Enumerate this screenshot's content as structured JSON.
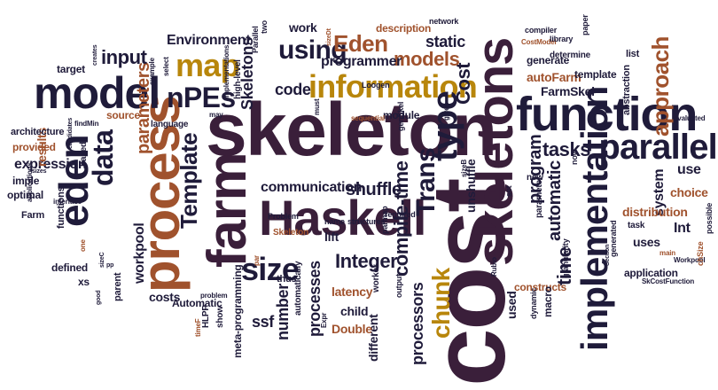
{
  "palette": {
    "background": "#ffffff",
    "word_colors": [
      "#3a1f3a",
      "#a0522d",
      "#b8860b",
      "#1f1b3a"
    ]
  },
  "words": [
    {
      "text": "cost",
      "color": "#3a1f3a"
    },
    {
      "text": "skeleton",
      "color": "#3a1f3a"
    },
    {
      "text": "process",
      "color": "#a0522d"
    },
    {
      "text": "farm",
      "color": "#3a1f3a"
    },
    {
      "text": "skeletons",
      "color": "#3a1f3a"
    },
    {
      "text": "function",
      "color": "#1f1b3a"
    },
    {
      "text": "model",
      "color": "#1f1b3a"
    },
    {
      "text": "Haskell",
      "color": "#3a1f3a"
    },
    {
      "text": "information",
      "color": "#b8860b"
    },
    {
      "text": "implementation",
      "color": "#1f1b3a"
    },
    {
      "text": "eden",
      "color": "#1f1b3a"
    },
    {
      "text": "parallel",
      "color": "#1f1b3a"
    },
    {
      "text": "Template",
      "color": "#1f1b3a"
    },
    {
      "text": "nPEs",
      "color": "#1f1b3a"
    },
    {
      "text": "map",
      "color": "#b8860b"
    },
    {
      "text": "data",
      "color": "#1f1b3a"
    },
    {
      "text": "type",
      "color": "#1f1b3a"
    },
    {
      "text": "size",
      "color": "#1f1b3a"
    },
    {
      "text": "Trans",
      "color": "#1f1b3a"
    },
    {
      "text": "chunk",
      "color": "#b8860b"
    },
    {
      "text": "approach",
      "color": "#a0522d"
    },
    {
      "text": "using",
      "color": "#1f1b3a"
    },
    {
      "text": "Eden",
      "color": "#a0522d"
    },
    {
      "text": "Cost",
      "color": "#1f1b3a"
    },
    {
      "text": "models",
      "color": "#a0522d"
    },
    {
      "text": "parameters",
      "color": "#a0522d"
    },
    {
      "text": "compile-time",
      "color": "#1f1b3a"
    },
    {
      "text": "program",
      "color": "#1f1b3a"
    },
    {
      "text": "automatic",
      "color": "#1f1b3a"
    },
    {
      "text": "tasks",
      "color": "#1f1b3a"
    },
    {
      "text": "time",
      "color": "#1f1b3a"
    },
    {
      "text": "input",
      "color": "#1f1b3a"
    },
    {
      "text": "Environment",
      "color": "#1f1b3a"
    },
    {
      "text": "static",
      "color": "#1f1b3a"
    },
    {
      "text": "programmer",
      "color": "#1f1b3a"
    },
    {
      "text": "Skeletons",
      "color": "#1f1b3a"
    },
    {
      "text": "code",
      "color": "#1f1b3a"
    },
    {
      "text": "communication",
      "color": "#1f1b3a"
    },
    {
      "text": "shuffle",
      "color": "#1f1b3a"
    },
    {
      "text": "Integer",
      "color": "#1f1b3a"
    },
    {
      "text": "processes",
      "color": "#1f1b3a"
    },
    {
      "text": "processors",
      "color": "#1f1b3a"
    },
    {
      "text": "number",
      "color": "#1f1b3a"
    },
    {
      "text": "expression",
      "color": "#1f1b3a"
    },
    {
      "text": "workpool",
      "color": "#1f1b3a"
    },
    {
      "text": "results",
      "color": "#a0522d"
    },
    {
      "text": "autoFarm",
      "color": "#a0522d"
    },
    {
      "text": "FarmSkel",
      "color": "#1f1b3a"
    },
    {
      "text": "system",
      "color": "#1f1b3a"
    },
    {
      "text": "distribution",
      "color": "#a0522d"
    },
    {
      "text": "choice",
      "color": "#a0522d"
    },
    {
      "text": "uses",
      "color": "#1f1b3a"
    },
    {
      "text": "Int",
      "color": "#1f1b3a"
    },
    {
      "text": "use",
      "color": "#1f1b3a"
    },
    {
      "text": "different",
      "color": "#1f1b3a"
    },
    {
      "text": "latency",
      "color": "#a0522d"
    },
    {
      "text": "child",
      "color": "#1f1b3a"
    },
    {
      "text": "Double",
      "color": "#a0522d"
    },
    {
      "text": "ssf",
      "color": "#1f1b3a"
    },
    {
      "text": "costs",
      "color": "#1f1b3a"
    },
    {
      "text": "Automatic",
      "color": "#1f1b3a"
    },
    {
      "text": "meta-programming",
      "color": "#1f1b3a"
    },
    {
      "text": "constructs",
      "color": "#a0522d"
    },
    {
      "text": "used",
      "color": "#1f1b3a"
    },
    {
      "text": "application",
      "color": "#1f1b3a"
    },
    {
      "text": "work",
      "color": "#1f1b3a"
    },
    {
      "text": "description",
      "color": "#a0522d"
    },
    {
      "text": "generate",
      "color": "#1f1b3a"
    },
    {
      "text": "template",
      "color": "#1f1b3a"
    },
    {
      "text": "module",
      "color": "#1f1b3a"
    },
    {
      "text": "lift",
      "color": "#1f1b3a"
    },
    {
      "text": "unshuffle",
      "color": "#1f1b3a"
    },
    {
      "text": "source",
      "color": "#a0522d"
    },
    {
      "text": "provided",
      "color": "#a0522d"
    },
    {
      "text": "architecture",
      "color": "#1f1b3a"
    },
    {
      "text": "imple",
      "color": "#1f1b3a"
    },
    {
      "text": "optimal",
      "color": "#1f1b3a"
    },
    {
      "text": "functions",
      "color": "#1f1b3a"
    },
    {
      "text": "defined",
      "color": "#1f1b3a"
    },
    {
      "text": "xs",
      "color": "#1f1b3a"
    },
    {
      "text": "Farm",
      "color": "#1f1b3a"
    },
    {
      "text": "parent",
      "color": "#1f1b3a"
    },
    {
      "text": "target",
      "color": "#1f1b3a"
    },
    {
      "text": "high-level",
      "color": "#1f1b3a"
    },
    {
      "text": "implementations",
      "color": "#1f1b3a"
    },
    {
      "text": "Parallel",
      "color": "#1f1b3a"
    },
    {
      "text": "two",
      "color": "#1f1b3a"
    },
    {
      "text": "macro",
      "color": "#1f1b3a"
    },
    {
      "text": "Loogen",
      "color": "#1f1b3a"
    },
    {
      "text": "genSkel",
      "color": "#1f1b3a"
    },
    {
      "text": "Skeleton",
      "color": "#a0522d"
    },
    {
      "text": "thus",
      "color": "#1f1b3a"
    },
    {
      "text": "automatically",
      "color": "#1f1b3a"
    },
    {
      "text": "HLPP",
      "color": "#1f1b3a"
    },
    {
      "text": "show",
      "color": "#1f1b3a"
    },
    {
      "text": "problem",
      "color": "#1f1b3a"
    },
    {
      "text": "Problem",
      "color": "#1f1b3a"
    },
    {
      "text": "compiler",
      "color": "#1f1b3a"
    },
    {
      "text": "CostModel",
      "color": "#a0522d"
    },
    {
      "text": "library",
      "color": "#1f1b3a"
    },
    {
      "text": "paper",
      "color": "#1f1b3a"
    },
    {
      "text": "determine",
      "color": "#1f1b3a"
    },
    {
      "text": "list",
      "color": "#1f1b3a"
    },
    {
      "text": "abstraction",
      "color": "#1f1b3a"
    },
    {
      "text": "network",
      "color": "#1f1b3a"
    },
    {
      "text": "evaluated",
      "color": "#1f1b3a"
    },
    {
      "text": "main",
      "color": "#a0522d"
    },
    {
      "text": "Workpool",
      "color": "#1f1b3a"
    },
    {
      "text": "chSize",
      "color": "#a0522d"
    },
    {
      "text": "possible",
      "color": "#1f1b3a"
    },
    {
      "text": "SkCostFunction",
      "color": "#1f1b3a"
    },
    {
      "text": "task",
      "color": "#1f1b3a"
    },
    {
      "text": "generated",
      "color": "#1f1b3a"
    },
    {
      "text": "Section",
      "color": "#1f1b3a"
    },
    {
      "text": "now",
      "color": "#1f1b3a"
    },
    {
      "text": "granularity",
      "color": "#1f1b3a"
    },
    {
      "text": "dynamic",
      "color": "#1f1b3a"
    },
    {
      "text": "parameter",
      "color": "#1f1b3a"
    },
    {
      "text": "new",
      "color": "#1f1b3a"
    },
    {
      "text": "set",
      "color": "#1f1b3a"
    },
    {
      "text": "sizeB",
      "color": "#1f1b3a"
    },
    {
      "text": "Rubio",
      "color": "#1f1b3a"
    },
    {
      "text": "output",
      "color": "#1f1b3a"
    },
    {
      "text": "worker",
      "color": "#1f1b3a"
    },
    {
      "text": "parmap",
      "color": "#1f1b3a"
    },
    {
      "text": "name",
      "color": "#1f1b3a"
    },
    {
      "text": "structures",
      "color": "#1f1b3a"
    },
    {
      "text": "required",
      "color": "#1f1b3a"
    },
    {
      "text": "sequential",
      "color": "#a0522d"
    },
    {
      "text": "given",
      "color": "#1f1b3a"
    },
    {
      "text": "must",
      "color": "#1f1b3a"
    },
    {
      "text": "par",
      "color": "#a0522d"
    },
    {
      "text": "Expr",
      "color": "#1f1b3a"
    },
    {
      "text": "may",
      "color": "#1f1b3a"
    },
    {
      "text": "language",
      "color": "#1f1b3a"
    },
    {
      "text": "based",
      "color": "#1f1b3a"
    },
    {
      "text": "findMin",
      "color": "#1f1b3a"
    },
    {
      "text": "candidates",
      "color": "#1f1b3a"
    },
    {
      "text": "creates",
      "color": "#1f1b3a"
    },
    {
      "text": "example",
      "color": "#1f1b3a"
    },
    {
      "text": "select",
      "color": "#1f1b3a"
    },
    {
      "text": "sizeDt",
      "color": "#a0522d"
    },
    {
      "text": "sizes",
      "color": "#1f1b3a"
    },
    {
      "text": "applications",
      "color": "#1f1b3a"
    },
    {
      "text": "interface",
      "color": "#1f1b3a"
    },
    {
      "text": "one",
      "color": "#a0522d"
    },
    {
      "text": "timeF",
      "color": "#a0522d"
    },
    {
      "text": "good",
      "color": "#1f1b3a"
    },
    {
      "text": "sizeC",
      "color": "#1f1b3a"
    },
    {
      "text": "pp",
      "color": "#1f1b3a"
    }
  ]
}
